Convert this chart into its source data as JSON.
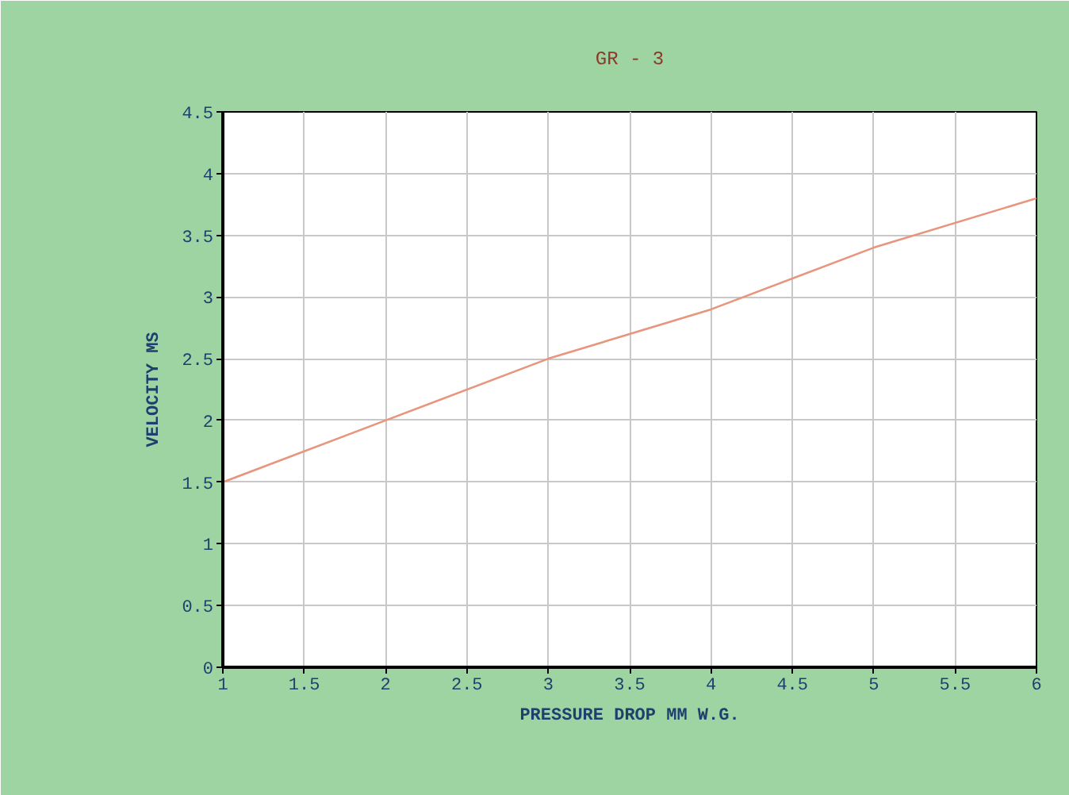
{
  "chart_data": {
    "type": "line",
    "title": "GR - 3",
    "xlabel": "PRESSURE DROP MM W.G.",
    "ylabel": "VELOCITY MS",
    "x": [
      1,
      2,
      3,
      4,
      5,
      6
    ],
    "series": [
      {
        "color": "#e8957e",
        "values": [
          1.5,
          2,
          2.5,
          2.9,
          3.4,
          3.8
        ]
      }
    ],
    "xlim": [
      1,
      6
    ],
    "ylim": [
      0,
      4.5
    ],
    "xticks": [
      1,
      1.5,
      2,
      2.5,
      3,
      3.5,
      4,
      4.5,
      5,
      5.5,
      6
    ],
    "yticks": [
      0,
      0.5,
      1,
      1.5,
      2,
      2.5,
      3,
      3.5,
      4,
      4.5
    ],
    "grid": true
  }
}
